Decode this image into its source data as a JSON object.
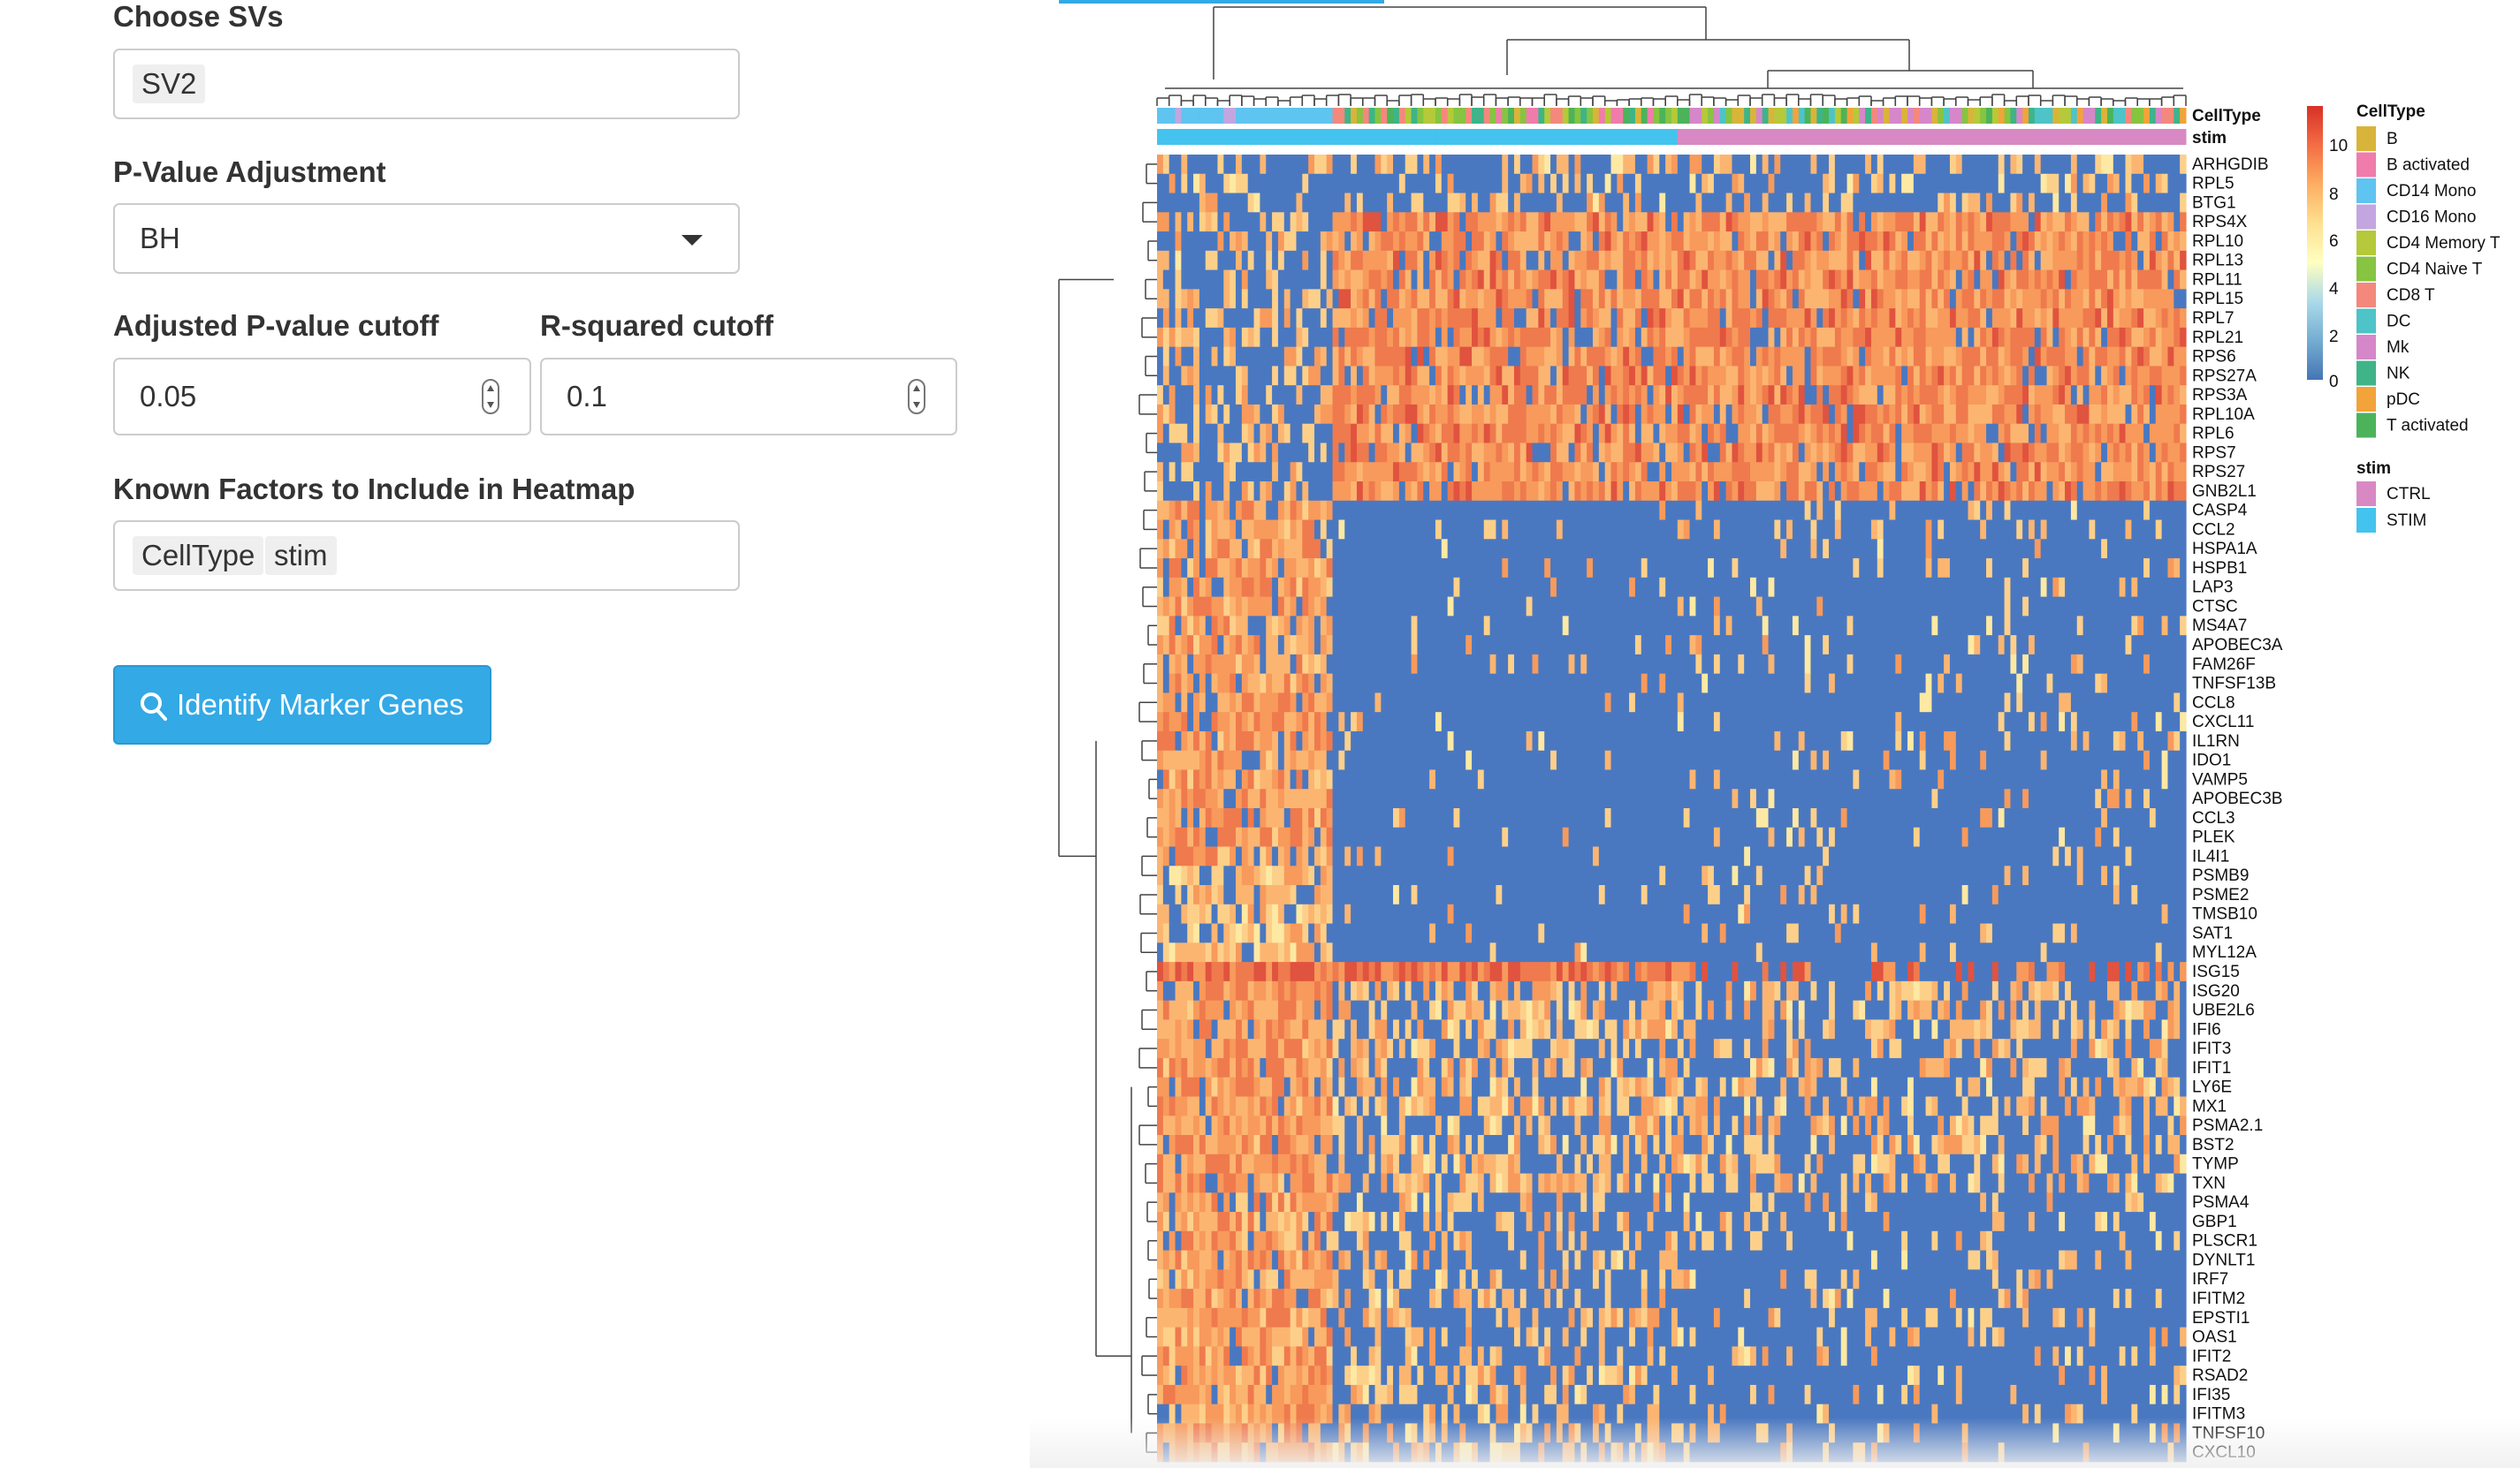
{
  "form": {
    "choose_svs": {
      "label": "Choose SVs",
      "selected": [
        "SV2"
      ]
    },
    "pvalue_adjustment": {
      "label": "P-Value Adjustment",
      "value": "BH"
    },
    "adj_pvalue_cutoff": {
      "label": "Adjusted P-value cutoff",
      "value": "0.05"
    },
    "rsquared_cutoff": {
      "label": "R-squared cutoff",
      "value": "0.1"
    },
    "known_factors": {
      "label": "Known Factors to Include in Heatmap",
      "selected": [
        "CellType",
        "stim"
      ]
    },
    "identify_button": {
      "label": "Identify Marker Genes",
      "icon": "search-icon"
    }
  },
  "heatmap": {
    "annotation_labels": [
      "CellType",
      "stim"
    ],
    "genes": [
      "ARHGDIB",
      "RPL5",
      "BTG1",
      "RPS4X",
      "RPL10",
      "RPL13",
      "RPL11",
      "RPL15",
      "RPL7",
      "RPL21",
      "RPS6",
      "RPS27A",
      "RPS3A",
      "RPL10A",
      "RPL6",
      "RPS7",
      "RPS27",
      "GNB2L1",
      "CASP4",
      "CCL2",
      "HSPA1A",
      "HSPB1",
      "LAP3",
      "CTSC",
      "MS4A7",
      "APOBEC3A",
      "FAM26F",
      "TNFSF13B",
      "CCL8",
      "CXCL11",
      "IL1RN",
      "IDO1",
      "VAMP5",
      "APOBEC3B",
      "CCL3",
      "PLEK",
      "IL4I1",
      "PSMB9",
      "PSME2",
      "TMSB10",
      "SAT1",
      "MYL12A",
      "ISG15",
      "ISG20",
      "UBE2L6",
      "IFI6",
      "IFIT3",
      "IFIT1",
      "LY6E",
      "MX1",
      "PSMA2.1",
      "BST2",
      "TYMP",
      "TXN",
      "PSMA4",
      "GBP1",
      "PLSCR1",
      "DYNLT1",
      "IRF7",
      "IFITM2",
      "EPSTI1",
      "OAS1",
      "IFIT2",
      "RSAD2",
      "IFI35",
      "IFITM3",
      "TNFSF10",
      "CXCL10"
    ],
    "color_scale": {
      "ticks": [
        "10",
        "8",
        "6",
        "4",
        "2",
        "0"
      ],
      "colors": [
        "#d73027",
        "#f46d43",
        "#fdae61",
        "#fee090",
        "#ffffbf",
        "#abd9e9",
        "#74add1",
        "#4575b4"
      ]
    },
    "legend_celltype": {
      "title": "CellType",
      "items": [
        {
          "label": "B",
          "color": "#d9b43a"
        },
        {
          "label": "B activated",
          "color": "#f07cab"
        },
        {
          "label": "CD14 Mono",
          "color": "#5fc4ef"
        },
        {
          "label": "CD16 Mono",
          "color": "#c3a6e0"
        },
        {
          "label": "CD4 Memory T",
          "color": "#b5c93a"
        },
        {
          "label": "CD4 Naive T",
          "color": "#86c441"
        },
        {
          "label": "CD8 T",
          "color": "#f4887c"
        },
        {
          "label": "DC",
          "color": "#4ec3c8"
        },
        {
          "label": "Mk",
          "color": "#d687c9"
        },
        {
          "label": "NK",
          "color": "#3eb488"
        },
        {
          "label": "pDC",
          "color": "#f2a33a"
        },
        {
          "label": "T activated",
          "color": "#4cb35a"
        }
      ]
    },
    "legend_stim": {
      "title": "stim",
      "items": [
        {
          "label": "CTRL",
          "color": "#d889c3"
        },
        {
          "label": "STIM",
          "color": "#44c3ef"
        }
      ]
    }
  }
}
